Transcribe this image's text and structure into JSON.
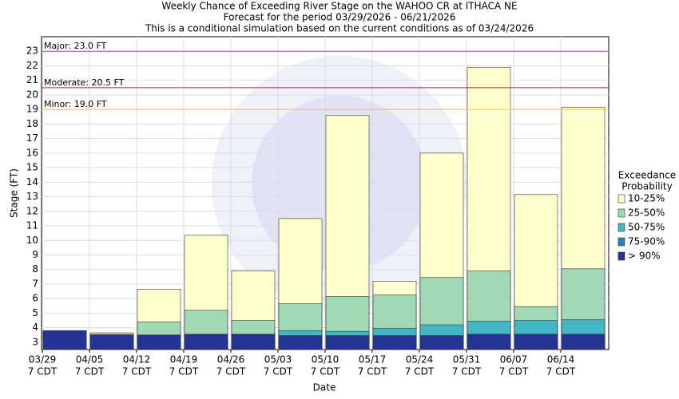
{
  "chart_data": {
    "type": "exceedance_bar",
    "title": "Weekly Chance of Exceeding River Stage on the WAHOO CR at ITHACA NE",
    "subtitle": "Forecast for the period 03/29/2026 - 06/21/2026",
    "subtitle2": "This is a conditional simulation based on the current conditions as of 03/24/2026",
    "y_label": "Stage (FT)",
    "x_label": "Date",
    "categories": [
      "03/29",
      "04/05",
      "04/12",
      "04/19",
      "04/26",
      "05/03",
      "05/10",
      "05/17",
      "05/24",
      "05/31",
      "06/07",
      "06/14"
    ],
    "category_sublabel": "7 CDT",
    "legend_title": [
      "Exceedance",
      "Probability"
    ],
    "series": [
      {
        "name": "10-25%",
        "color": "#ffffcc",
        "values": [
          3.8,
          3.65,
          6.65,
          10.35,
          7.9,
          11.5,
          18.6,
          7.2,
          16.0,
          21.9,
          13.15,
          19.15
        ]
      },
      {
        "name": "25-50%",
        "color": "#a1d9b4",
        "values": [
          3.8,
          3.55,
          4.4,
          5.2,
          4.5,
          5.65,
          6.15,
          6.25,
          7.45,
          7.9,
          5.45,
          8.05
        ]
      },
      {
        "name": "50-75%",
        "color": "#41b6c4",
        "values": [
          3.8,
          3.5,
          3.5,
          3.55,
          3.55,
          3.8,
          3.75,
          3.95,
          4.2,
          4.45,
          4.5,
          4.55
        ]
      },
      {
        "name": "75-90%",
        "color": "#2c7fb8",
        "values": [
          3.8,
          3.5,
          3.5,
          3.55,
          3.55,
          3.45,
          3.45,
          3.45,
          3.45,
          3.55,
          3.55,
          3.55
        ]
      },
      {
        "name": "> 90%",
        "color": "#253494",
        "values": [
          3.8,
          3.5,
          3.5,
          3.55,
          3.55,
          3.45,
          3.45,
          3.45,
          3.45,
          3.55,
          3.55,
          3.55
        ]
      }
    ],
    "flood_levels": [
      {
        "label": "Major: 23.0 FT",
        "value": 23.0,
        "color": "#cc33cc"
      },
      {
        "label": "Moderate: 20.5 FT",
        "value": 20.5,
        "color": "#aa2244"
      },
      {
        "label": "Minor: 19.0 FT",
        "value": 19.0,
        "color": "#e6d200"
      }
    ],
    "ylim": [
      2.5,
      24
    ],
    "yticks": [
      3,
      4,
      5,
      6,
      7,
      8,
      9,
      10,
      11,
      12,
      13,
      14,
      15,
      16,
      17,
      18,
      19,
      20,
      21,
      22,
      23
    ],
    "grid": true
  }
}
